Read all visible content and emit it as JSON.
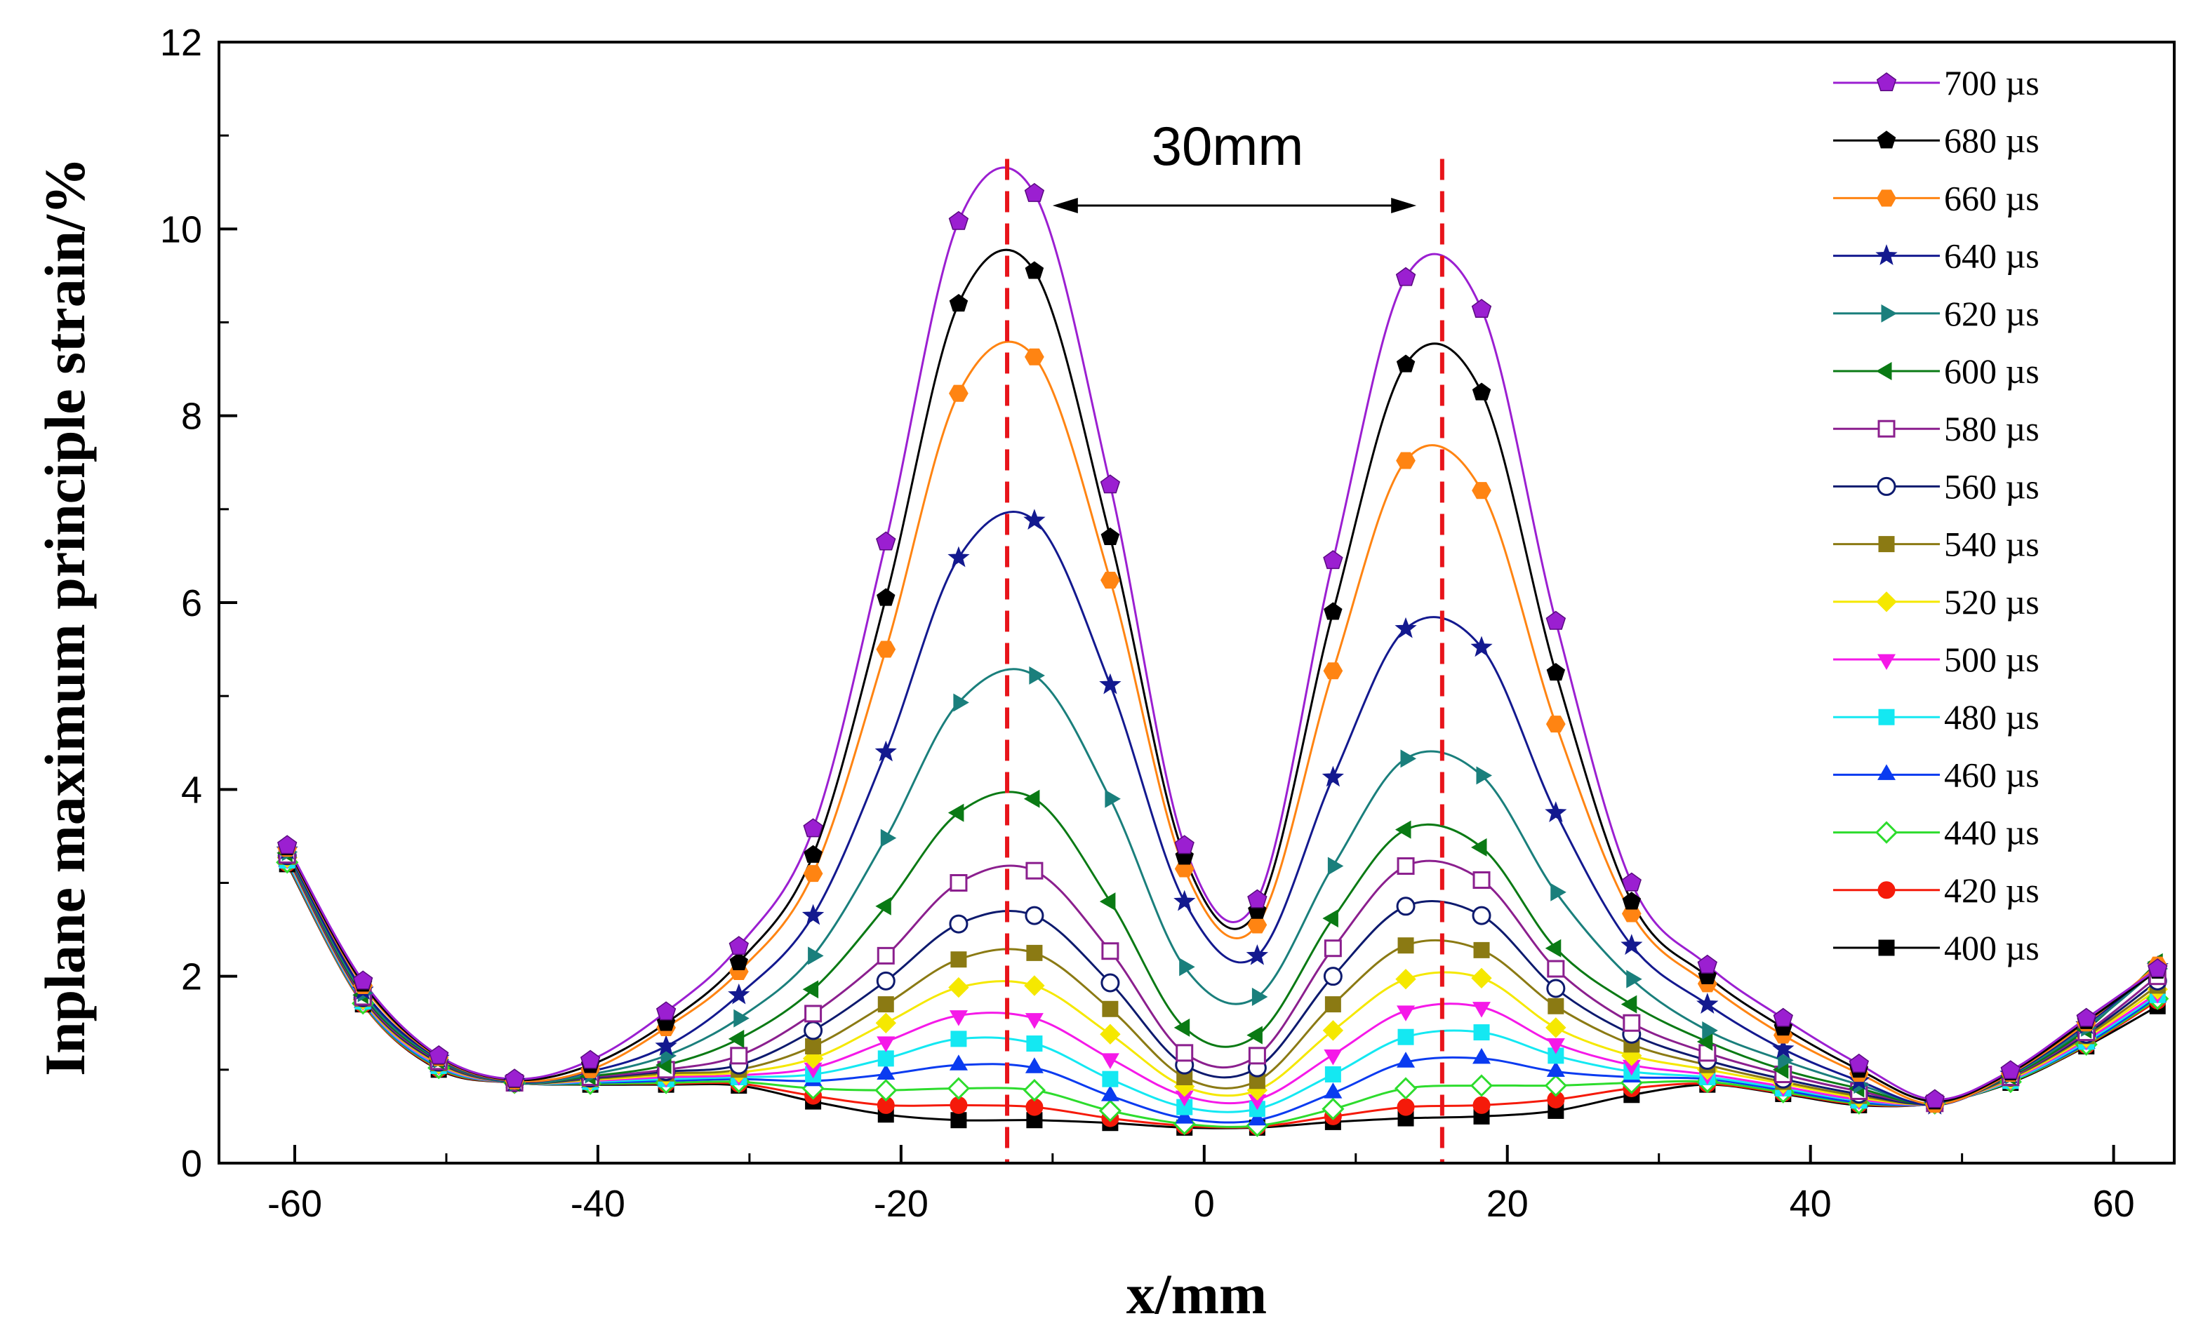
{
  "chart_data": {
    "type": "line",
    "title": "",
    "xlabel": "x/mm",
    "ylabel": "Inplane maximum principle strain/%",
    "xlim": [
      -65,
      64
    ],
    "ylim": [
      0,
      12
    ],
    "xticks": [
      -60,
      -40,
      -20,
      0,
      20,
      40,
      60
    ],
    "xtick_labels": [
      "-60",
      "-40",
      "-20",
      "0",
      "20",
      "40",
      "60"
    ],
    "yticks": [
      0,
      2,
      4,
      6,
      8,
      10,
      12
    ],
    "ytick_labels": [
      "0",
      "2",
      "4",
      "6",
      "8",
      "10",
      "12"
    ],
    "grid": false,
    "legend_position": "top-right",
    "annotations": {
      "distance_label": "30mm",
      "arrow_from_x": -10,
      "arrow_to_x": 14,
      "arrow_y": 10.25,
      "dashed_lines_x": [
        -13,
        15.7
      ],
      "dashed_line_color": "#e8141a"
    },
    "x": [
      -60.5,
      -55.5,
      -50.5,
      -45.5,
      -40.5,
      -35.5,
      -30.7,
      -25.8,
      -21,
      -16.2,
      -11.2,
      -6.2,
      -1.3,
      3.5,
      8.5,
      13.3,
      18.3,
      23.2,
      28.2,
      33.2,
      38.2,
      43.2,
      48.2,
      53.2,
      58.2,
      62.9
    ],
    "series": [
      {
        "name": "700 µs",
        "marker": "pentagon-ball",
        "color": "#9b1fd1",
        "values": [
          3.4,
          1.95,
          1.15,
          0.9,
          1.1,
          1.62,
          2.32,
          3.58,
          6.65,
          10.08,
          10.38,
          7.26,
          3.4,
          2.82,
          6.45,
          9.48,
          9.14,
          5.8,
          3.0,
          2.12,
          1.55,
          1.06,
          0.68,
          0.99,
          1.55,
          2.08
        ]
      },
      {
        "name": "680 µs",
        "marker": "pentagon",
        "color": "#000000",
        "values": [
          3.38,
          1.92,
          1.14,
          0.89,
          1.05,
          1.5,
          2.15,
          3.3,
          6.05,
          9.2,
          9.55,
          6.7,
          3.28,
          2.7,
          5.9,
          8.55,
          8.25,
          5.25,
          2.8,
          2.0,
          1.45,
          1.0,
          0.66,
          0.97,
          1.52,
          2.06
        ]
      },
      {
        "name": "660 µs",
        "marker": "hexagon",
        "color": "#ff8412",
        "values": [
          3.37,
          1.9,
          1.13,
          0.88,
          1.0,
          1.45,
          2.05,
          3.1,
          5.5,
          8.24,
          8.63,
          6.24,
          3.15,
          2.55,
          5.27,
          7.52,
          7.2,
          4.7,
          2.67,
          1.92,
          1.37,
          0.96,
          0.63,
          0.96,
          1.5,
          2.12
        ]
      },
      {
        "name": "640 µs",
        "marker": "star",
        "color": "#13198f",
        "values": [
          3.35,
          1.85,
          1.12,
          0.87,
          0.98,
          1.25,
          1.8,
          2.65,
          4.4,
          6.48,
          6.88,
          5.12,
          2.8,
          2.22,
          4.13,
          5.72,
          5.52,
          3.75,
          2.33,
          1.7,
          1.22,
          0.88,
          0.62,
          0.95,
          1.48,
          2.1
        ]
      },
      {
        "name": "620 µs",
        "marker": "triangle-right",
        "color": "#1a7f7c",
        "values": [
          3.33,
          1.82,
          1.11,
          0.86,
          0.95,
          1.15,
          1.55,
          2.22,
          3.48,
          4.93,
          5.22,
          3.9,
          2.1,
          1.78,
          3.18,
          4.33,
          4.15,
          2.9,
          1.97,
          1.42,
          1.1,
          0.84,
          0.63,
          0.94,
          1.45,
          2.08
        ]
      },
      {
        "name": "600 µs",
        "marker": "triangle-left",
        "color": "#0a7a14",
        "values": [
          3.32,
          1.8,
          1.1,
          0.86,
          0.93,
          1.05,
          1.33,
          1.86,
          2.75,
          3.75,
          3.9,
          2.8,
          1.45,
          1.37,
          2.62,
          3.57,
          3.38,
          2.3,
          1.7,
          1.3,
          1.0,
          0.8,
          0.63,
          0.93,
          1.43,
          2.15
        ]
      },
      {
        "name": "580 µs",
        "marker": "square-open",
        "color": "#8b1f8e",
        "values": [
          3.3,
          1.78,
          1.09,
          0.86,
          0.92,
          1.0,
          1.15,
          1.6,
          2.22,
          3.0,
          3.13,
          2.27,
          1.18,
          1.15,
          2.3,
          3.18,
          3.03,
          2.08,
          1.5,
          1.18,
          0.95,
          0.77,
          0.64,
          0.92,
          1.4,
          2.0
        ]
      },
      {
        "name": "560 µs",
        "marker": "circle-open",
        "color": "#0d1a6e",
        "values": [
          3.29,
          1.77,
          1.08,
          0.86,
          0.91,
          0.98,
          1.05,
          1.42,
          1.95,
          2.56,
          2.65,
          1.93,
          1.05,
          1.02,
          2.0,
          2.75,
          2.65,
          1.87,
          1.38,
          1.1,
          0.9,
          0.74,
          0.64,
          0.92,
          1.38,
          1.95
        ]
      },
      {
        "name": "540 µs",
        "marker": "square",
        "color": "#8b7a13",
        "values": [
          3.28,
          1.76,
          1.07,
          0.86,
          0.9,
          0.96,
          1.0,
          1.25,
          1.7,
          2.18,
          2.25,
          1.65,
          0.92,
          0.88,
          1.7,
          2.33,
          2.28,
          1.68,
          1.27,
          1.05,
          0.87,
          0.72,
          0.64,
          0.91,
          1.36,
          1.9
        ]
      },
      {
        "name": "520 µs",
        "marker": "diamond",
        "color": "#f5e800",
        "values": [
          3.27,
          1.75,
          1.06,
          0.86,
          0.89,
          0.94,
          0.97,
          1.12,
          1.5,
          1.88,
          1.9,
          1.38,
          0.82,
          0.78,
          1.42,
          1.97,
          1.98,
          1.45,
          1.15,
          1.0,
          0.85,
          0.7,
          0.64,
          0.9,
          1.34,
          1.86
        ]
      },
      {
        "name": "500 µs",
        "marker": "triangle-down",
        "color": "#f519e8",
        "values": [
          3.26,
          1.74,
          1.05,
          0.86,
          0.88,
          0.92,
          0.94,
          1.02,
          1.3,
          1.58,
          1.55,
          1.12,
          0.72,
          0.68,
          1.16,
          1.63,
          1.67,
          1.28,
          1.05,
          0.95,
          0.82,
          0.68,
          0.64,
          0.89,
          1.32,
          1.82
        ]
      },
      {
        "name": "480 µs",
        "marker": "square",
        "color": "#14e8f2",
        "values": [
          3.24,
          1.73,
          1.04,
          0.86,
          0.87,
          0.9,
          0.92,
          0.95,
          1.12,
          1.33,
          1.28,
          0.9,
          0.6,
          0.58,
          0.95,
          1.35,
          1.4,
          1.15,
          0.98,
          0.92,
          0.8,
          0.67,
          0.64,
          0.88,
          1.3,
          1.8
        ]
      },
      {
        "name": "460 µs",
        "marker": "triangle-up",
        "color": "#0a3bf0",
        "values": [
          3.23,
          1.72,
          1.03,
          0.86,
          0.86,
          0.88,
          0.9,
          0.88,
          0.95,
          1.05,
          1.02,
          0.72,
          0.48,
          0.46,
          0.75,
          1.08,
          1.12,
          0.98,
          0.92,
          0.9,
          0.78,
          0.65,
          0.64,
          0.88,
          1.28,
          1.78
        ]
      },
      {
        "name": "440 µs",
        "marker": "diamond-open",
        "color": "#2ddc2d",
        "values": [
          3.22,
          1.71,
          1.02,
          0.86,
          0.85,
          0.86,
          0.87,
          0.8,
          0.78,
          0.8,
          0.78,
          0.56,
          0.42,
          0.4,
          0.58,
          0.8,
          0.83,
          0.83,
          0.86,
          0.87,
          0.76,
          0.64,
          0.64,
          0.87,
          1.27,
          1.76
        ]
      },
      {
        "name": "420 µs",
        "marker": "circle",
        "color": "#f51a0a",
        "values": [
          3.21,
          1.7,
          1.01,
          0.86,
          0.85,
          0.85,
          0.85,
          0.72,
          0.62,
          0.62,
          0.6,
          0.48,
          0.4,
          0.39,
          0.5,
          0.6,
          0.62,
          0.68,
          0.8,
          0.85,
          0.75,
          0.63,
          0.64,
          0.87,
          1.26,
          1.74
        ]
      },
      {
        "name": "400 µs",
        "marker": "square",
        "color": "#000000",
        "values": [
          3.2,
          1.7,
          1.0,
          0.86,
          0.84,
          0.84,
          0.83,
          0.66,
          0.52,
          0.46,
          0.46,
          0.43,
          0.38,
          0.38,
          0.44,
          0.48,
          0.5,
          0.56,
          0.73,
          0.84,
          0.74,
          0.62,
          0.64,
          0.86,
          1.25,
          1.68
        ]
      }
    ]
  }
}
